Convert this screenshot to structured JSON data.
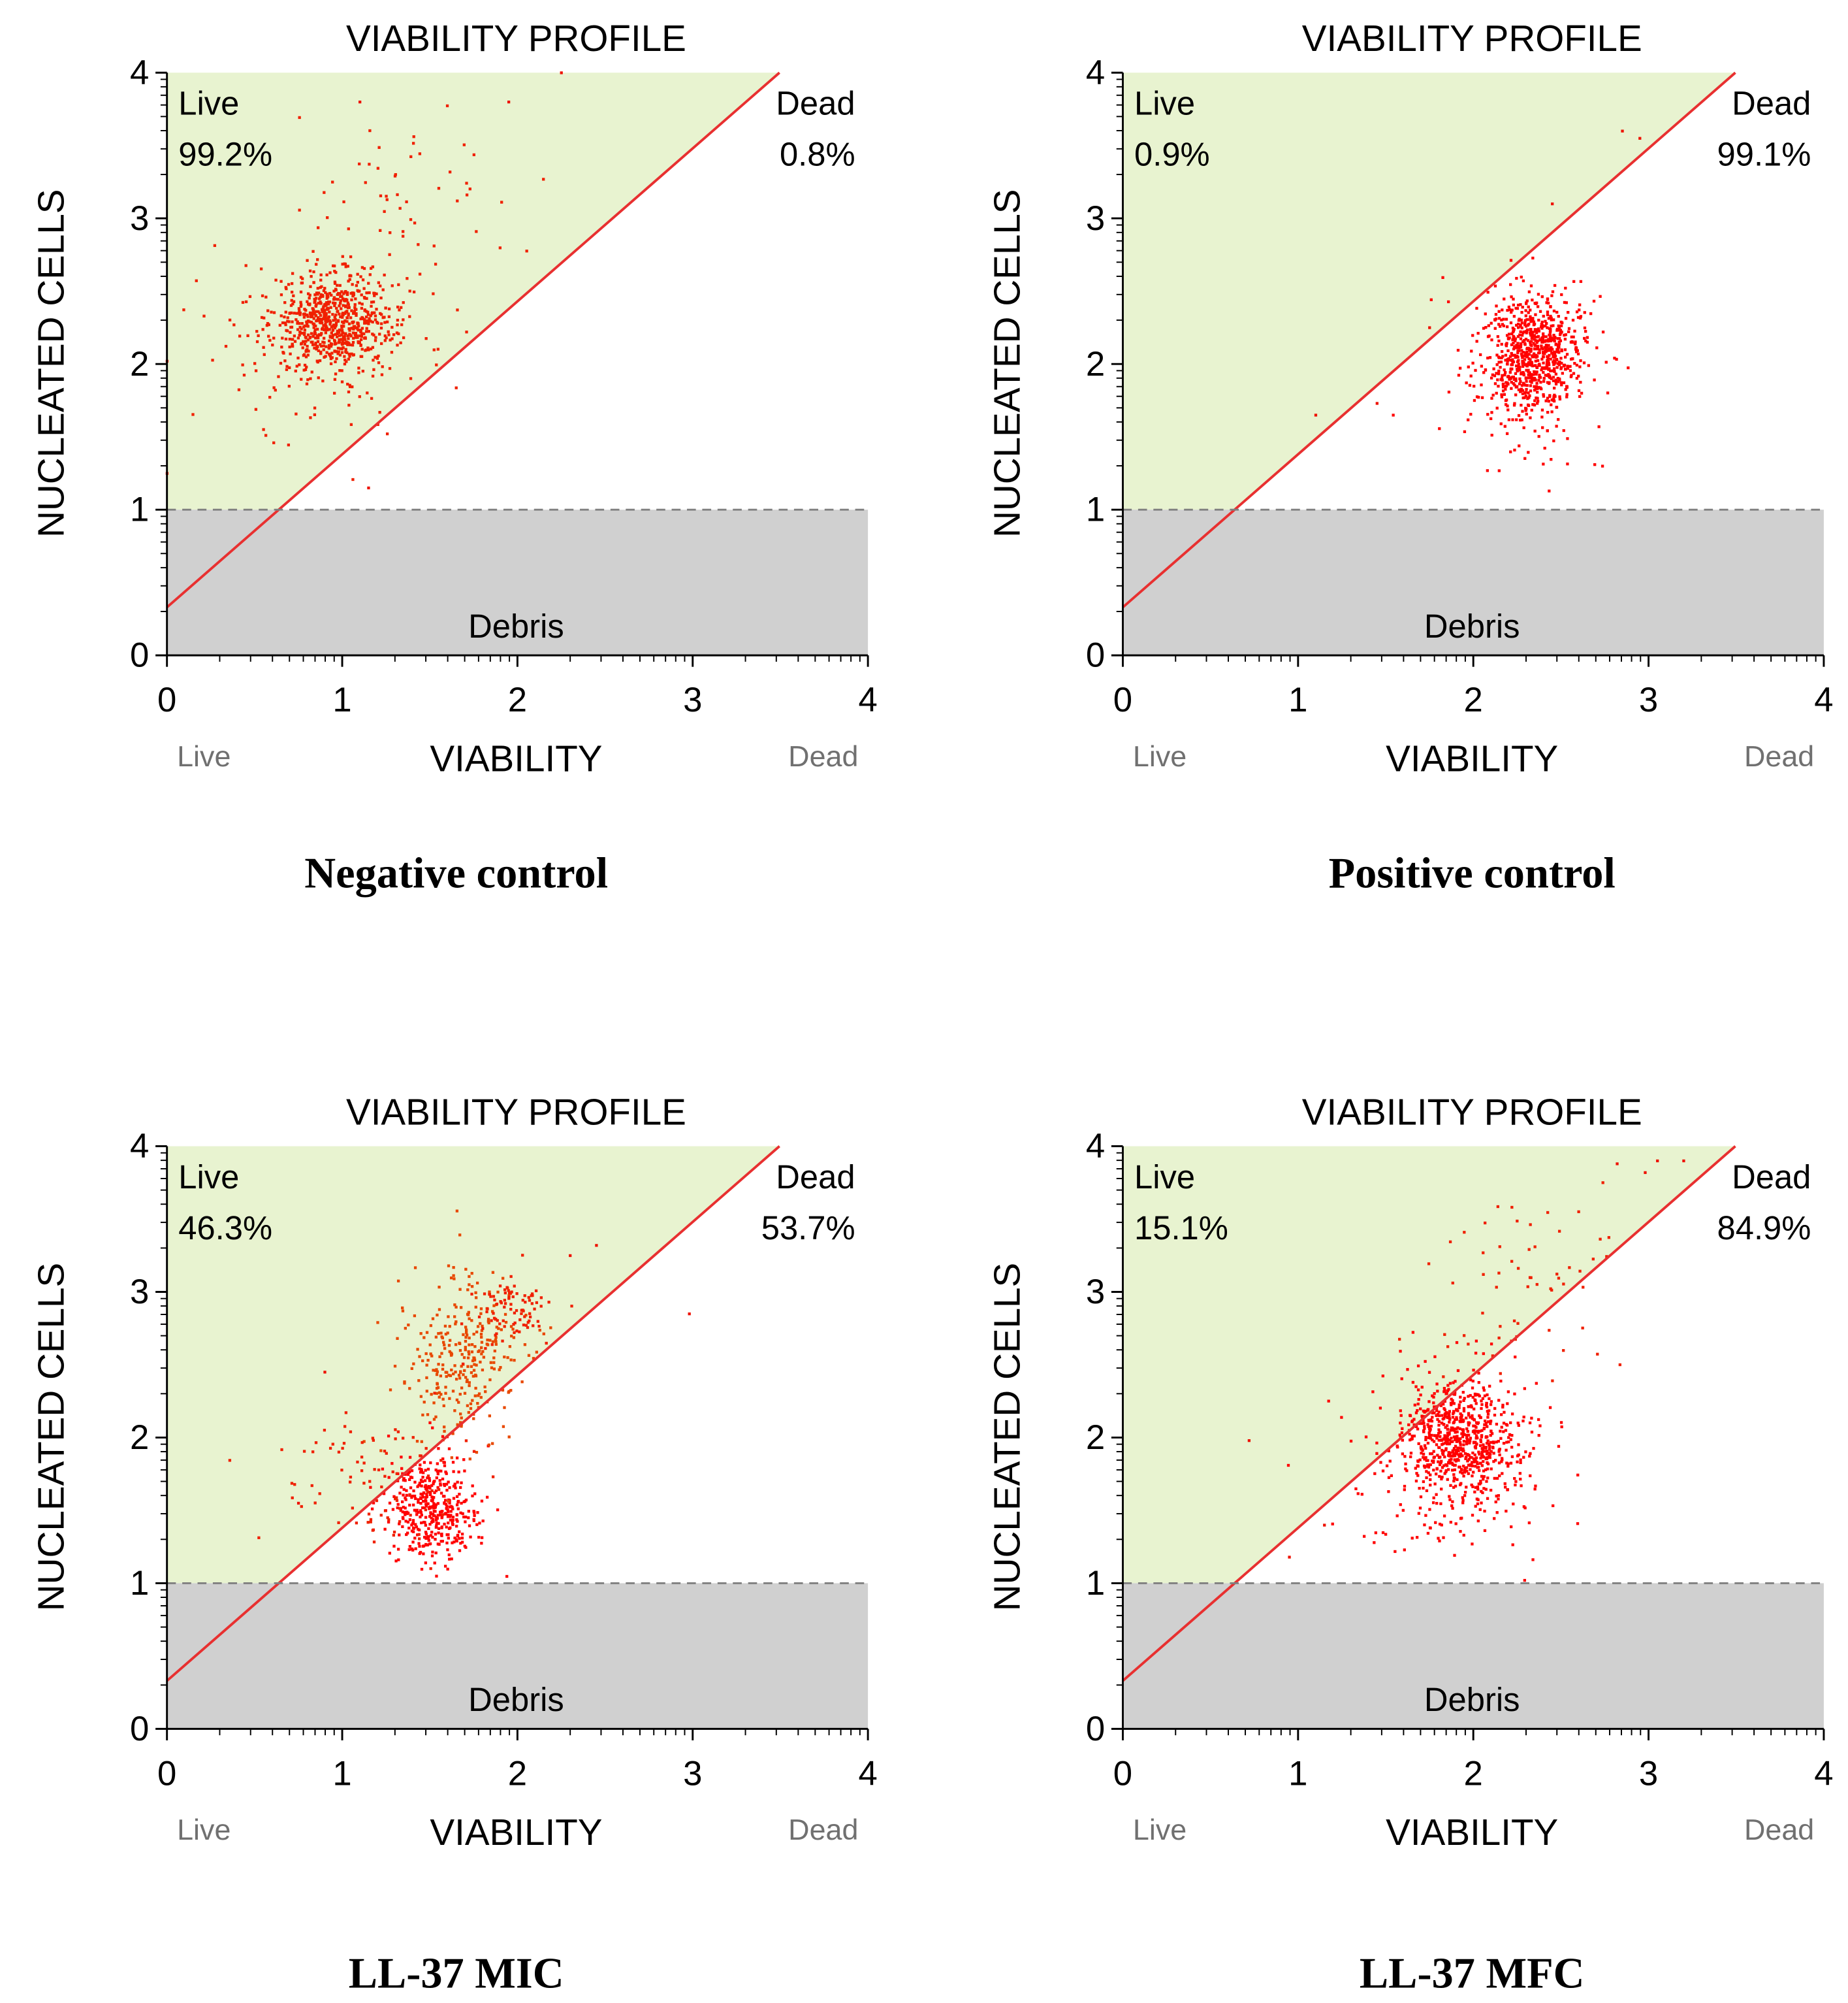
{
  "chart_data": [
    {
      "type": "scatter",
      "title": "VIABILITY PROFILE",
      "caption": "Negative control",
      "xlabel": "VIABILITY",
      "ylabel": "NUCLEATED CELLS",
      "x_left_label": "Live",
      "x_right_label": "Dead",
      "xlim": [
        0,
        4
      ],
      "ylim": [
        0,
        4
      ],
      "xticks": [
        "0",
        "1",
        "2",
        "3",
        "4"
      ],
      "yticks": [
        "0",
        "1",
        "2",
        "3",
        "4"
      ],
      "debris_threshold": 1,
      "gate_line": {
        "intercept": 0.33,
        "slope": 1.05
      },
      "regions": {
        "live_label": "Live",
        "live_pct": "99.2%",
        "dead_label": "Dead",
        "dead_pct": "0.8%",
        "debris_label": "Debris"
      },
      "clusters": [
        {
          "cx": 0.95,
          "cy": 2.28,
          "sx": 0.17,
          "sy": 0.16,
          "n": 700,
          "color": "#f02000"
        },
        {
          "cx": 0.95,
          "cy": 2.25,
          "sx": 0.36,
          "sy": 0.42,
          "n": 130,
          "color": "#f02000"
        },
        {
          "cx": 1.45,
          "cy": 3.2,
          "sx": 0.28,
          "sy": 0.3,
          "n": 45,
          "color": "#f02000"
        }
      ],
      "extra_points": [
        [
          2.25,
          4.0
        ],
        [
          1.95,
          3.8
        ],
        [
          1.1,
          3.8
        ],
        [
          0.0,
          1.25
        ],
        [
          0.0,
          2.02
        ],
        [
          1.15,
          1.15
        ]
      ]
    },
    {
      "type": "scatter",
      "title": "VIABILITY PROFILE",
      "caption": "Positive control",
      "xlabel": "VIABILITY",
      "ylabel": "NUCLEATED CELLS",
      "x_left_label": "Live",
      "x_right_label": "Dead",
      "xlim": [
        0,
        4
      ],
      "ylim": [
        0,
        4
      ],
      "xticks": [
        "0",
        "1",
        "2",
        "3",
        "4"
      ],
      "yticks": [
        "0",
        "1",
        "2",
        "3",
        "4"
      ],
      "debris_threshold": 1,
      "gate_line": {
        "intercept": 0.33,
        "slope": 1.05
      },
      "regions": {
        "live_label": "Live",
        "live_pct": "0.9%",
        "dead_label": "Dead",
        "dead_pct": "99.1%",
        "debris_label": "Debris"
      },
      "clusters": [
        {
          "cx": 2.35,
          "cy": 2.08,
          "sx": 0.13,
          "sy": 0.2,
          "n": 700,
          "color": "#ff0000"
        },
        {
          "cx": 2.3,
          "cy": 1.85,
          "sx": 0.22,
          "sy": 0.32,
          "n": 150,
          "color": "#ff0000"
        }
      ],
      "extra_points": [
        [
          2.85,
          3.6
        ],
        [
          2.95,
          3.55
        ],
        [
          2.45,
          3.1
        ],
        [
          1.1,
          1.65
        ],
        [
          1.45,
          1.73
        ],
        [
          1.75,
          2.25
        ]
      ]
    },
    {
      "type": "scatter",
      "title": "VIABILITY PROFILE",
      "caption": "LL-37 MIC",
      "xlabel": "VIABILITY",
      "ylabel": "NUCLEATED CELLS",
      "x_left_label": "Live",
      "x_right_label": "Dead",
      "xlim": [
        0,
        4
      ],
      "ylim": [
        0,
        4
      ],
      "xticks": [
        "0",
        "1",
        "2",
        "3",
        "4"
      ],
      "yticks": [
        "0",
        "1",
        "2",
        "3",
        "4"
      ],
      "debris_threshold": 1,
      "gate_line": {
        "intercept": 0.33,
        "slope": 1.05
      },
      "regions": {
        "live_label": "Live",
        "live_pct": "46.3%",
        "dead_label": "Dead",
        "dead_pct": "53.7%",
        "debris_label": "Debris"
      },
      "clusters": [
        {
          "cx": 1.52,
          "cy": 1.5,
          "sx": 0.13,
          "sy": 0.19,
          "n": 420,
          "color": "#ff0000"
        },
        {
          "cx": 1.7,
          "cy": 2.55,
          "sx": 0.17,
          "sy": 0.3,
          "n": 300,
          "color": "#e84800"
        },
        {
          "cx": 1.95,
          "cy": 2.85,
          "sx": 0.12,
          "sy": 0.12,
          "n": 90,
          "color": "#f02000"
        },
        {
          "cx": 1.2,
          "cy": 1.7,
          "sx": 0.25,
          "sy": 0.25,
          "n": 90,
          "color": "#f02000"
        }
      ],
      "extra_points": [
        [
          2.45,
          3.32
        ],
        [
          2.98,
          2.85
        ],
        [
          0.9,
          2.45
        ],
        [
          0.75,
          1.55
        ],
        [
          2.3,
          3.25
        ]
      ]
    },
    {
      "type": "scatter",
      "title": "VIABILITY PROFILE",
      "caption": "LL-37 MFC",
      "xlabel": "VIABILITY",
      "ylabel": "NUCLEATED CELLS",
      "x_left_label": "Live",
      "x_right_label": "Dead",
      "xlim": [
        0,
        4
      ],
      "ylim": [
        0,
        4
      ],
      "xticks": [
        "0",
        "1",
        "2",
        "3",
        "4"
      ],
      "yticks": [
        "0",
        "1",
        "2",
        "3",
        "4"
      ],
      "debris_threshold": 1,
      "gate_line": {
        "intercept": 0.33,
        "slope": 1.05
      },
      "regions": {
        "live_label": "Live",
        "live_pct": "15.1%",
        "dead_label": "Dead",
        "dead_pct": "84.9%",
        "debris_label": "Debris"
      },
      "clusters": [
        {
          "cx": 1.92,
          "cy": 2.0,
          "sx": 0.15,
          "sy": 0.2,
          "n": 650,
          "color": "#ff0000"
        },
        {
          "cx": 1.9,
          "cy": 1.85,
          "sx": 0.3,
          "sy": 0.35,
          "n": 220,
          "color": "#ff0000"
        },
        {
          "cx": 2.3,
          "cy": 3.05,
          "sx": 0.28,
          "sy": 0.35,
          "n": 60,
          "color": "#f02000"
        }
      ],
      "extra_points": [
        [
          2.82,
          3.88
        ],
        [
          2.98,
          3.82
        ],
        [
          3.05,
          3.9
        ],
        [
          3.2,
          3.9
        ],
        [
          0.72,
          1.98
        ],
        [
          0.95,
          1.18
        ],
        [
          1.15,
          1.4
        ]
      ]
    }
  ]
}
